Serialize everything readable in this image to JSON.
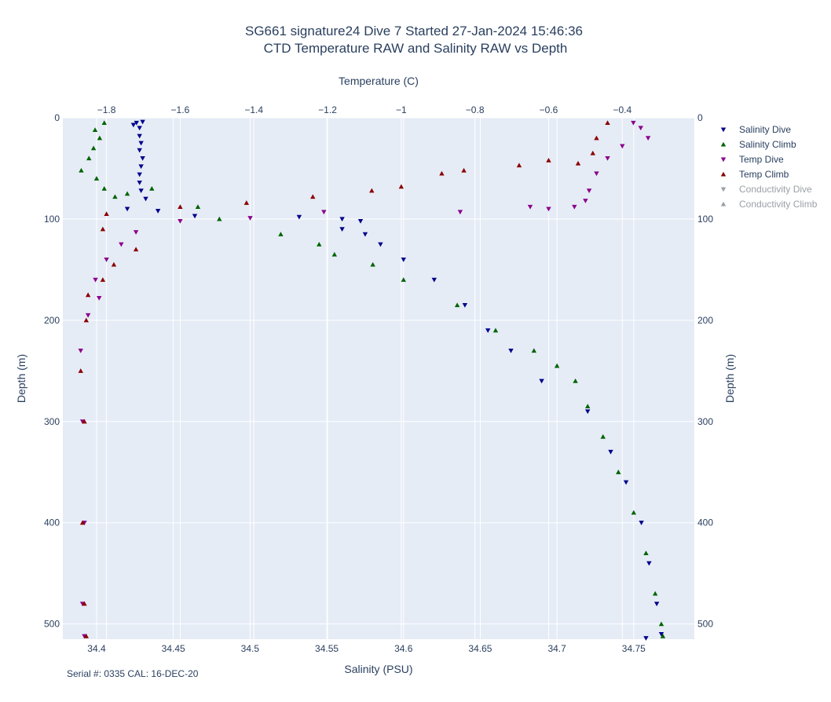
{
  "chart_data": {
    "type": "scatter",
    "title_line1": "SG661 signature24 Dive 7 Started 27-Jan-2024 15:46:36",
    "title_line2": "CTD Temperature RAW and Salinity RAW vs Depth",
    "xlabel_bottom": "Salinity (PSU)",
    "xlabel_top": "Temperature (C)",
    "ylabel_left": "Depth (m)",
    "ylabel_right": "Depth (m)",
    "annotation": "Serial #: 0335  CAL: 16-DEC-20",
    "x_bottom": {
      "range": [
        34.378,
        34.7895
      ],
      "ticks": [
        34.4,
        34.45,
        34.5,
        34.55,
        34.6,
        34.65,
        34.7,
        34.75
      ],
      "tick_labels": [
        "34.4",
        "34.45",
        "34.5",
        "34.55",
        "34.6",
        "34.65",
        "34.7",
        "34.75"
      ]
    },
    "x_top": {
      "range": [
        -1.9185,
        -0.2045
      ],
      "ticks": [
        -1.8,
        -1.6,
        -1.4,
        -1.2,
        -1,
        -0.8,
        -0.6,
        -0.4
      ],
      "tick_labels": [
        "−1.8",
        "−1.6",
        "−1.4",
        "−1.2",
        "−1",
        "−0.8",
        "−0.6",
        "−0.4"
      ]
    },
    "y": {
      "range": [
        0,
        515
      ],
      "reversed": true,
      "ticks": [
        0,
        100,
        200,
        300,
        400,
        500
      ],
      "tick_labels": [
        "0",
        "100",
        "200",
        "300",
        "400",
        "500"
      ]
    },
    "grid": true,
    "legend_position": "right",
    "series": [
      {
        "name": "Salinity Dive",
        "axis": "salinity",
        "symbol": "triangle-down",
        "color": "#00008b",
        "visible": true,
        "points": [
          [
            34.426,
            5
          ],
          [
            34.43,
            4
          ],
          [
            34.424,
            7
          ],
          [
            34.428,
            10
          ],
          [
            34.428,
            18
          ],
          [
            34.429,
            25
          ],
          [
            34.428,
            32
          ],
          [
            34.43,
            40
          ],
          [
            34.429,
            48
          ],
          [
            34.428,
            56
          ],
          [
            34.428,
            64
          ],
          [
            34.429,
            72
          ],
          [
            34.432,
            80
          ],
          [
            34.42,
            90
          ],
          [
            34.44,
            92
          ],
          [
            34.464,
            97
          ],
          [
            34.532,
            98
          ],
          [
            34.56,
            100
          ],
          [
            34.572,
            102
          ],
          [
            34.56,
            110
          ],
          [
            34.575,
            115
          ],
          [
            34.585,
            125
          ],
          [
            34.6,
            140
          ],
          [
            34.62,
            160
          ],
          [
            34.64,
            185
          ],
          [
            34.655,
            210
          ],
          [
            34.67,
            230
          ],
          [
            34.69,
            260
          ],
          [
            34.72,
            290
          ],
          [
            34.735,
            330
          ],
          [
            34.745,
            360
          ],
          [
            34.755,
            400
          ],
          [
            34.76,
            440
          ],
          [
            34.765,
            480
          ],
          [
            34.768,
            510
          ],
          [
            34.758,
            514
          ]
        ]
      },
      {
        "name": "Salinity Climb",
        "axis": "salinity",
        "symbol": "triangle-up",
        "color": "#006400",
        "visible": true,
        "points": [
          [
            34.405,
            5
          ],
          [
            34.399,
            12
          ],
          [
            34.402,
            20
          ],
          [
            34.398,
            30
          ],
          [
            34.395,
            40
          ],
          [
            34.39,
            52
          ],
          [
            34.4,
            60
          ],
          [
            34.405,
            70
          ],
          [
            34.412,
            78
          ],
          [
            34.42,
            75
          ],
          [
            34.436,
            70
          ],
          [
            34.466,
            88
          ],
          [
            34.48,
            100
          ],
          [
            34.52,
            115
          ],
          [
            34.545,
            125
          ],
          [
            34.555,
            135
          ],
          [
            34.58,
            145
          ],
          [
            34.6,
            160
          ],
          [
            34.635,
            185
          ],
          [
            34.66,
            210
          ],
          [
            34.685,
            230
          ],
          [
            34.7,
            245
          ],
          [
            34.712,
            260
          ],
          [
            34.72,
            285
          ],
          [
            34.73,
            315
          ],
          [
            34.74,
            350
          ],
          [
            34.75,
            390
          ],
          [
            34.758,
            430
          ],
          [
            34.764,
            470
          ],
          [
            34.768,
            500
          ],
          [
            34.769,
            512
          ]
        ]
      },
      {
        "name": "Temp Dive",
        "axis": "temperature",
        "symbol": "triangle-down",
        "color": "#8b008b",
        "visible": true,
        "points": [
          [
            -0.37,
            5
          ],
          [
            -0.35,
            10
          ],
          [
            -0.33,
            20
          ],
          [
            -0.4,
            28
          ],
          [
            -0.44,
            40
          ],
          [
            -0.47,
            55
          ],
          [
            -0.49,
            72
          ],
          [
            -0.5,
            82
          ],
          [
            -0.53,
            88
          ],
          [
            -0.6,
            90
          ],
          [
            -0.65,
            88
          ],
          [
            -0.84,
            93
          ],
          [
            -1.21,
            93
          ],
          [
            -1.41,
            99
          ],
          [
            -1.6,
            102
          ],
          [
            -1.72,
            113
          ],
          [
            -1.76,
            125
          ],
          [
            -1.8,
            140
          ],
          [
            -1.83,
            160
          ],
          [
            -1.82,
            178
          ],
          [
            -1.85,
            195
          ],
          [
            -1.87,
            230
          ],
          [
            -1.865,
            300
          ],
          [
            -1.86,
            400
          ],
          [
            -1.865,
            480
          ],
          [
            -1.86,
            512
          ]
        ]
      },
      {
        "name": "Temp Climb",
        "axis": "temperature",
        "symbol": "triangle-up",
        "color": "#8b0000",
        "visible": true,
        "points": [
          [
            -0.44,
            5
          ],
          [
            -0.47,
            20
          ],
          [
            -0.48,
            35
          ],
          [
            -0.52,
            45
          ],
          [
            -0.6,
            42
          ],
          [
            -0.68,
            47
          ],
          [
            -0.83,
            52
          ],
          [
            -0.89,
            55
          ],
          [
            -1.0,
            68
          ],
          [
            -1.08,
            72
          ],
          [
            -1.24,
            78
          ],
          [
            -1.42,
            84
          ],
          [
            -1.6,
            88
          ],
          [
            -1.8,
            95
          ],
          [
            -1.81,
            110
          ],
          [
            -1.72,
            130
          ],
          [
            -1.78,
            145
          ],
          [
            -1.81,
            160
          ],
          [
            -1.85,
            175
          ],
          [
            -1.855,
            200
          ],
          [
            -1.87,
            250
          ],
          [
            -1.86,
            300
          ],
          [
            -1.865,
            400
          ],
          [
            -1.86,
            480
          ],
          [
            -1.855,
            512
          ]
        ]
      },
      {
        "name": "Conductivity Dive",
        "axis": "conductivity",
        "symbol": "triangle-down",
        "color": "#aaaaaa",
        "visible": false,
        "points": []
      },
      {
        "name": "Conductivity Climb",
        "axis": "conductivity",
        "symbol": "triangle-up",
        "color": "#aaaaaa",
        "visible": false,
        "points": []
      }
    ],
    "colors": {
      "plot_bg": "#e5ecf6",
      "grid": "#ffffff",
      "text": "#2a3f5f",
      "legend_hidden": "#9aa0a6"
    }
  }
}
